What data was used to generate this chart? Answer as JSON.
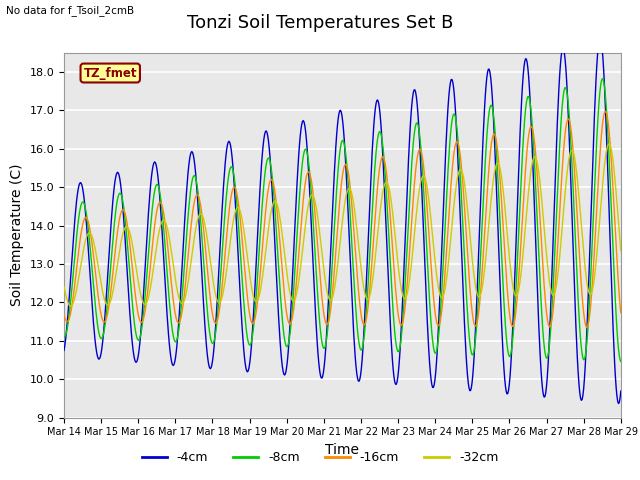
{
  "title": "Tonzi Soil Temperatures Set B",
  "subtitle": "No data for f_Tsoil_2cmB",
  "xlabel": "Time",
  "ylabel": "Soil Temperature (C)",
  "ylim": [
    9.0,
    18.5
  ],
  "yticks": [
    9.0,
    10.0,
    11.0,
    12.0,
    13.0,
    14.0,
    15.0,
    16.0,
    17.0,
    18.0
  ],
  "xtick_labels": [
    "Mar 14",
    "Mar 15",
    "Mar 16",
    "Mar 17",
    "Mar 18",
    "Mar 19",
    "Mar 20",
    "Mar 21",
    "Mar 22",
    "Mar 23",
    "Mar 24",
    "Mar 25",
    "Mar 26",
    "Mar 27",
    "Mar 28",
    "Mar 29"
  ],
  "legend_entries": [
    "-4cm",
    "-8cm",
    "-16cm",
    "-32cm"
  ],
  "line_colors": [
    "#0000cc",
    "#00cc00",
    "#ff8800",
    "#cccc00"
  ],
  "tz_fmet_label": "TZ_fmet",
  "title_fontsize": 13,
  "label_fontsize": 10,
  "tick_fontsize": 8
}
